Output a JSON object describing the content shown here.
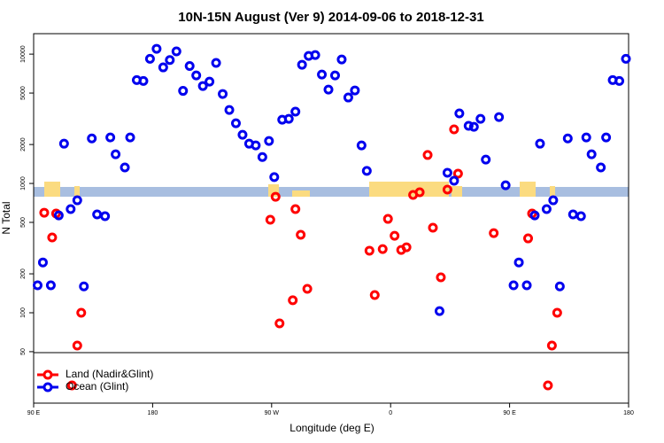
{
  "chart_data": {
    "type": "scatter",
    "title": "10N-15N August (Ver 9)   2014-09-06 to 2018-12-31",
    "x_label": "Longitude (deg E)",
    "y_label": "N Total",
    "xlim": [
      90,
      540
    ],
    "ylim": [
      20,
      14400
    ],
    "log_y": true,
    "xticks": [
      {
        "value": 90,
        "label": "90 E"
      },
      180,
      {
        "value": 270,
        "label": "90 W"
      },
      {
        "value": 360,
        "label": "0"
      },
      {
        "value": 450,
        "label": "90 E"
      },
      {
        "value": 540,
        "label": "180"
      }
    ],
    "yticks": [
      50,
      100,
      200,
      500,
      1000,
      2000,
      5000,
      10000
    ],
    "legend": "bottom-left",
    "series": [
      {
        "name": "Land (Nadir&Glint)",
        "color": "#ff0000",
        "x": [
          98,
          104,
          107,
          119,
          123,
          126,
          269,
          273,
          276,
          286,
          288,
          292,
          297,
          344,
          348,
          354,
          358,
          363,
          368,
          372,
          377,
          382,
          388,
          392,
          398,
          403,
          408,
          411,
          438,
          464,
          467,
          479,
          482,
          486
        ],
        "values": [
          594,
          382,
          585,
          27.4,
          55.8,
          100,
          524,
          789,
          82.8,
          125,
          633,
          401,
          153,
          302,
          137,
          311,
          532,
          394,
          306,
          321,
          815,
          855,
          1660,
          455,
          188,
          896,
          2620,
          1190,
          413,
          376,
          585,
          27.4,
          55.8,
          100
        ]
      },
      {
        "name": "Ocean (Glint)",
        "color": "#0000ee",
        "x": [
          93,
          97,
          103,
          109,
          113,
          118,
          123,
          128,
          134,
          138,
          144,
          148,
          152,
          159,
          163,
          168,
          173,
          178,
          183,
          188,
          193,
          198,
          203,
          208,
          213,
          218,
          223,
          228,
          233,
          238,
          243,
          248,
          253,
          258,
          263,
          268,
          272,
          278,
          283,
          288,
          293,
          298,
          303,
          308,
          313,
          318,
          323,
          328,
          333,
          338,
          342,
          397,
          403,
          408,
          412,
          419,
          423,
          428,
          432,
          442,
          447,
          453,
          457,
          463,
          469,
          473,
          478,
          483,
          488,
          494,
          498,
          504,
          508,
          512,
          519,
          523,
          528,
          533,
          538
        ],
        "values": [
          163,
          245,
          163,
          566,
          2030,
          633,
          741,
          160,
          2230,
          576,
          558,
          2270,
          1680,
          1330,
          2270,
          6300,
          6200,
          9200,
          11000,
          7900,
          9000,
          10500,
          5200,
          8100,
          6850,
          5670,
          6130,
          8550,
          4920,
          3700,
          2920,
          2380,
          2030,
          1970,
          1600,
          2130,
          1120,
          3110,
          3160,
          3590,
          8280,
          9690,
          9840,
          6960,
          5320,
          6850,
          9100,
          4620,
          5240,
          1970,
          1250,
          103,
          1210,
          1050,
          3480,
          2790,
          2740,
          3160,
          1530,
          3260,
          968,
          163,
          245,
          163,
          566,
          2030,
          633,
          741,
          160,
          2230,
          576,
          558,
          2270,
          1680,
          1330,
          2270,
          6300,
          6200,
          9200
        ]
      }
    ]
  }
}
